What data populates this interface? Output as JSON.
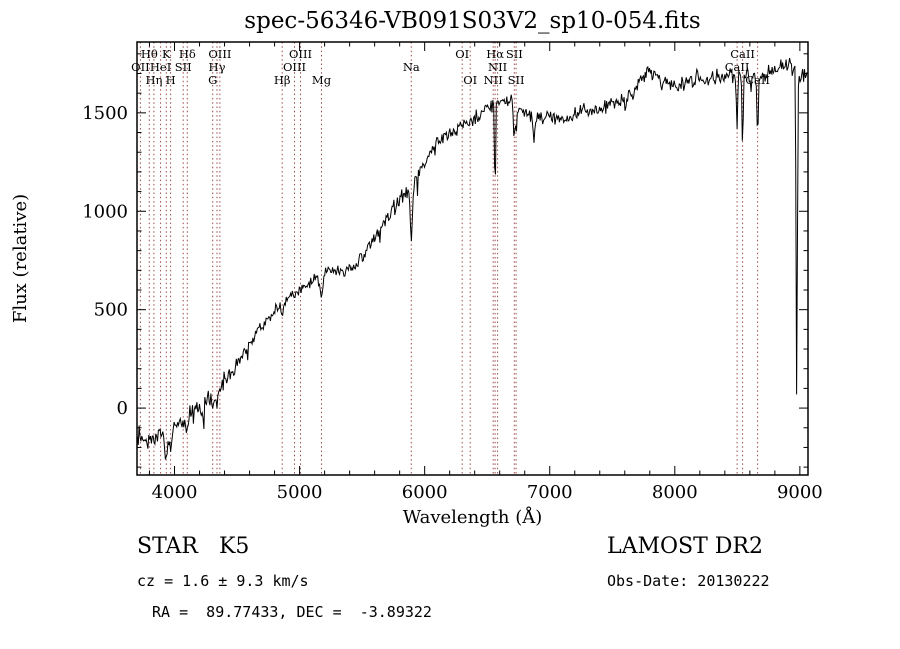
{
  "chart_data": {
    "type": "line",
    "title": "spec-56346-VB091S03V2_sp10-054.fits",
    "xlabel": "Wavelength (Å)",
    "ylabel": "Flux (relative)",
    "xlim": [
      3700,
      9065
    ],
    "ylim": [
      -340,
      1860
    ],
    "xticks": [
      4000,
      5000,
      6000,
      7000,
      8000,
      9000
    ],
    "yticks": [
      0,
      500,
      1000,
      1500
    ],
    "grid": false,
    "legend": "none",
    "line_color": "#000000",
    "marker_color": "#9e4b4b",
    "continuum": [
      [
        3700,
        -130
      ],
      [
        3760,
        -170
      ],
      [
        3820,
        -150
      ],
      [
        3880,
        -140
      ],
      [
        3940,
        -130
      ],
      [
        4000,
        -80
      ],
      [
        4060,
        -70
      ],
      [
        4120,
        -40
      ],
      [
        4180,
        0
      ],
      [
        4240,
        30
      ],
      [
        4300,
        60
      ],
      [
        4360,
        100
      ],
      [
        4420,
        160
      ],
      [
        4480,
        215
      ],
      [
        4540,
        265
      ],
      [
        4600,
        330
      ],
      [
        4660,
        390
      ],
      [
        4720,
        430
      ],
      [
        4780,
        480
      ],
      [
        4840,
        520
      ],
      [
        4900,
        555
      ],
      [
        4960,
        580
      ],
      [
        5020,
        600
      ],
      [
        5080,
        635
      ],
      [
        5140,
        660
      ],
      [
        5200,
        695
      ],
      [
        5260,
        700
      ],
      [
        5320,
        690
      ],
      [
        5380,
        705
      ],
      [
        5440,
        730
      ],
      [
        5500,
        775
      ],
      [
        5560,
        830
      ],
      [
        5620,
        890
      ],
      [
        5680,
        950
      ],
      [
        5740,
        1010
      ],
      [
        5800,
        1060
      ],
      [
        5860,
        1100
      ],
      [
        5920,
        1140
      ],
      [
        5980,
        1230
      ],
      [
        6040,
        1290
      ],
      [
        6100,
        1340
      ],
      [
        6160,
        1380
      ],
      [
        6220,
        1410
      ],
      [
        6280,
        1430
      ],
      [
        6340,
        1450
      ],
      [
        6400,
        1470
      ],
      [
        6460,
        1500
      ],
      [
        6520,
        1530
      ],
      [
        6580,
        1565
      ],
      [
        6640,
        1560
      ],
      [
        6700,
        1545
      ],
      [
        6760,
        1520
      ],
      [
        6820,
        1500
      ],
      [
        6880,
        1465
      ],
      [
        6940,
        1465
      ],
      [
        7000,
        1480
      ],
      [
        7060,
        1465
      ],
      [
        7120,
        1460
      ],
      [
        7180,
        1480
      ],
      [
        7240,
        1500
      ],
      [
        7300,
        1510
      ],
      [
        7360,
        1500
      ],
      [
        7420,
        1515
      ],
      [
        7480,
        1545
      ],
      [
        7540,
        1565
      ],
      [
        7600,
        1580
      ],
      [
        7660,
        1600
      ],
      [
        7720,
        1650
      ],
      [
        7780,
        1720
      ],
      [
        7840,
        1700
      ],
      [
        7900,
        1655
      ],
      [
        7960,
        1640
      ],
      [
        8020,
        1635
      ],
      [
        8080,
        1655
      ],
      [
        8140,
        1665
      ],
      [
        8200,
        1670
      ],
      [
        8260,
        1660
      ],
      [
        8320,
        1665
      ],
      [
        8380,
        1685
      ],
      [
        8440,
        1690
      ],
      [
        8500,
        1690
      ],
      [
        8560,
        1700
      ],
      [
        8620,
        1690
      ],
      [
        8680,
        1680
      ],
      [
        8740,
        1690
      ],
      [
        8800,
        1715
      ],
      [
        8860,
        1735
      ],
      [
        8920,
        1740
      ],
      [
        8980,
        1715
      ],
      [
        9040,
        1690
      ]
    ],
    "dips": [
      [
        3934,
        110,
        12
      ],
      [
        3969,
        95,
        12
      ],
      [
        4102,
        70,
        10
      ],
      [
        4227,
        60,
        8
      ],
      [
        4305,
        55,
        10
      ],
      [
        4340,
        45,
        8
      ],
      [
        4861,
        65,
        9
      ],
      [
        5175,
        85,
        14
      ],
      [
        5893,
        250,
        9
      ],
      [
        6563,
        430,
        5
      ],
      [
        6717,
        170,
        5
      ],
      [
        6731,
        140,
        5
      ],
      [
        6875,
        100,
        7
      ],
      [
        7605,
        60,
        6
      ],
      [
        8498,
        230,
        5
      ],
      [
        8542,
        390,
        5
      ],
      [
        8662,
        310,
        5
      ],
      [
        8975,
        1680,
        5
      ]
    ],
    "spectral_lines": [
      {
        "label": "OII",
        "wl": 3727,
        "row": 2
      },
      {
        "label": "Hθ",
        "wl": 3798,
        "row": 1
      },
      {
        "label": "Hη",
        "wl": 3835,
        "row": 3
      },
      {
        "label": "HeI",
        "wl": 3889,
        "row": 2
      },
      {
        "label": "K",
        "wl": 3934,
        "row": 1
      },
      {
        "label": "H",
        "wl": 3969,
        "row": 3
      },
      {
        "label": "SII",
        "wl": 4069,
        "row": 2
      },
      {
        "label": "Hδ",
        "wl": 4102,
        "row": 1
      },
      {
        "label": "G",
        "wl": 4305,
        "row": 3
      },
      {
        "label": "Hγ",
        "wl": 4340,
        "row": 2
      },
      {
        "label": "OIII",
        "wl": 4363,
        "row": 1
      },
      {
        "label": "Hβ",
        "wl": 4861,
        "row": 3
      },
      {
        "label": "OIII",
        "wl": 4959,
        "row": 2
      },
      {
        "label": "OIII",
        "wl": 5007,
        "row": 1
      },
      {
        "label": "Mg",
        "wl": 5175,
        "row": 3
      },
      {
        "label": "Na",
        "wl": 5893,
        "row": 2
      },
      {
        "label": "OI",
        "wl": 6300,
        "row": 1
      },
      {
        "label": "OI",
        "wl": 6364,
        "row": 3
      },
      {
        "label": "NII",
        "wl": 6548,
        "row": 3
      },
      {
        "label": "Hα",
        "wl": 6563,
        "row": 1
      },
      {
        "label": "NII",
        "wl": 6583,
        "row": 2
      },
      {
        "label": "SII",
        "wl": 6717,
        "row": 1
      },
      {
        "label": "SII",
        "wl": 6731,
        "row": 3
      },
      {
        "label": "CaII",
        "wl": 8498,
        "row": 2
      },
      {
        "label": "CaII",
        "wl": 8542,
        "row": 1
      },
      {
        "label": "CaII",
        "wl": 8662,
        "row": 3
      }
    ]
  },
  "footer": {
    "object_type": "STAR   K5",
    "cz": "cz = 1.6 ± 9.3 km/s",
    "coords": "RA =  89.77433, DEC =  -3.89322",
    "survey": "LAMOST DR2",
    "obs_date": "Obs-Date: 20130222"
  }
}
